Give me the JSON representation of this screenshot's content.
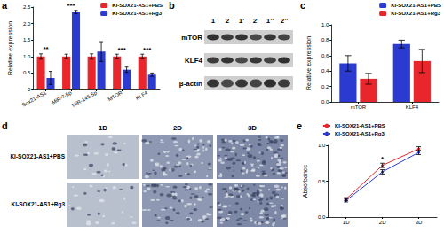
{
  "chart_data": [
    {
      "panel_label": "a",
      "type": "bar",
      "categories": [
        "Sox21-AS1",
        "MiR-7-5p",
        "MiR-145-5p",
        "MTOR",
        "KLF4"
      ],
      "y_label": "Relative expression",
      "ylim": [
        0,
        2.5
      ],
      "yticks": [
        0,
        0.5,
        {
          "value": 1,
          "label": "1.0"
        },
        1.5,
        {
          "value": 2,
          "label": "2.0"
        },
        2.5
      ],
      "grid": false,
      "legend": "upper right",
      "series": [
        {
          "name": "KI-SOX21-AS1+PBS",
          "color": "#e8262b",
          "values": [
            1,
            1,
            1,
            1,
            1
          ],
          "errors": [
            0.08,
            0.07,
            0.08,
            0.07,
            0.07
          ]
        },
        {
          "name": "KI-SOX21-AS1+Rg3",
          "color": "#2b3bd1",
          "values": [
            0.35,
            2.35,
            1.15,
            0.6,
            0.45
          ],
          "errors": [
            0.2,
            0.05,
            0.3,
            0.08,
            0.05
          ]
        }
      ],
      "annotations": [
        "**",
        "***",
        null,
        "***",
        "***"
      ]
    },
    {
      "panel_label": "c",
      "type": "bar",
      "categories": [
        "mTOR",
        "KLF4"
      ],
      "y_label": "Relative expression",
      "ylim": [
        0,
        1
      ],
      "yticks": [
        {
          "value": 0,
          "label": "0.0"
        },
        0.2,
        0.4,
        0.6,
        0.8,
        {
          "value": 1,
          "label": "1.0"
        }
      ],
      "grid": false,
      "legend": "upper right",
      "series": [
        {
          "name": "KI-SOX21-AS1+PBS",
          "color": "#2b3bd1",
          "values": [
            0.5,
            0.75
          ],
          "errors": [
            0.1,
            0.05
          ]
        },
        {
          "name": "KI-SOX21-AS1+Rg3",
          "color": "#e8262b",
          "values": [
            0.3,
            0.53
          ],
          "errors": [
            0.07,
            0.15
          ]
        }
      ]
    },
    {
      "panel_label": "e",
      "type": "line",
      "categories": [
        "1D",
        "2D",
        "3D"
      ],
      "y_label": "Absorbance",
      "ylim": [
        0,
        1
      ],
      "yticks": [
        {
          "value": 0,
          "label": "0.0"
        },
        0.5,
        {
          "value": 1,
          "label": "1.0"
        }
      ],
      "grid": false,
      "legend": "upper left",
      "series": [
        {
          "name": "KI-SOX21-AS1+PBS",
          "color": "#e8262b",
          "marker": "circle",
          "line_style": "solid",
          "values": [
            0.25,
            0.72,
            0.95
          ],
          "errors": [
            0.02,
            0.03,
            0.03
          ]
        },
        {
          "name": "KI-SOX21-AS1+Rg3",
          "color": "#2b3bd1",
          "marker": "circle",
          "line_style": "solid",
          "values": [
            0.23,
            0.63,
            0.9
          ],
          "errors": [
            0.02,
            0.03,
            0.03
          ]
        }
      ],
      "annotations": [
        null,
        "*",
        null
      ]
    }
  ],
  "blot": {
    "panel_label": "b",
    "lanes": [
      "1",
      "2",
      "1'",
      "2'",
      "1''",
      "2''"
    ],
    "rows": [
      "mTOR",
      "KLF4",
      "β-actin"
    ]
  },
  "micrographs": {
    "panel_label": "d",
    "columns": [
      "1D",
      "2D",
      "3D"
    ],
    "rows": [
      "KI-SOX21-AS1+PBS",
      "KI-SOX21-AS1+Rg3"
    ]
  }
}
